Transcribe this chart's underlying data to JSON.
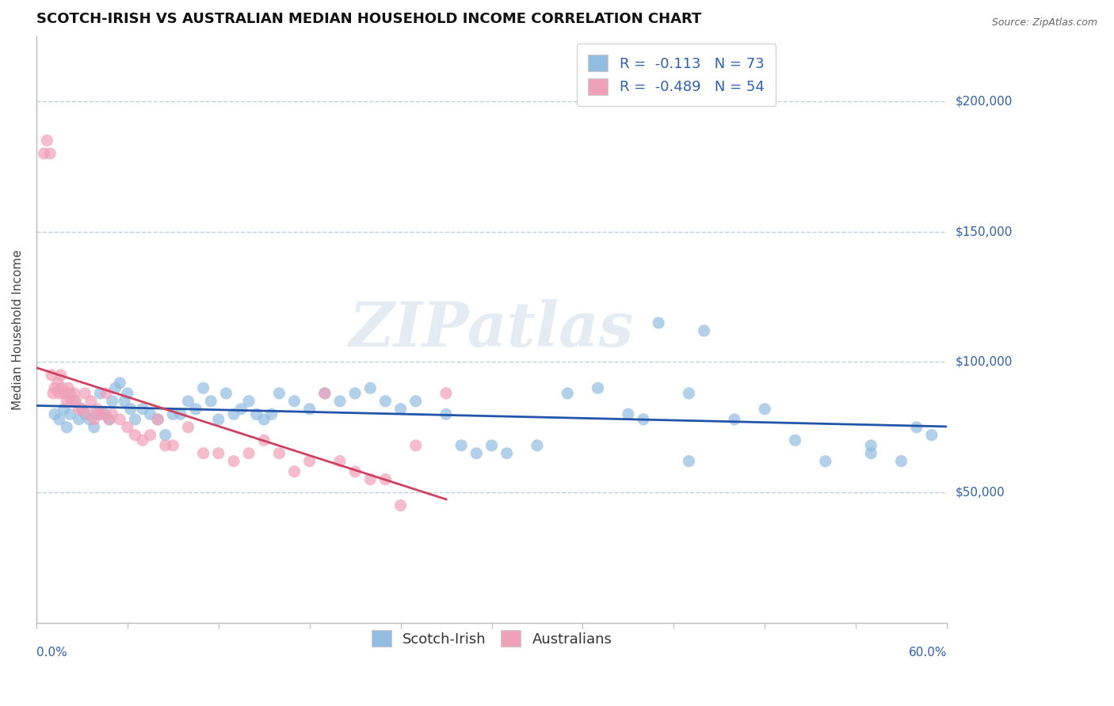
{
  "title": "SCOTCH-IRISH VS AUSTRALIAN MEDIAN HOUSEHOLD INCOME CORRELATION CHART",
  "source": "Source: ZipAtlas.com",
  "ylabel": "Median Household Income",
  "xlim": [
    0.0,
    60.0
  ],
  "ylim": [
    0,
    225000
  ],
  "yticks": [
    0,
    50000,
    100000,
    150000,
    200000
  ],
  "ytick_labels": [
    "",
    "$50,000",
    "$100,000",
    "$150,000",
    "$200,000"
  ],
  "scotch_irish_color": "#92bce0",
  "australian_color": "#f0a0b8",
  "regression_blue_color": "#2255aa",
  "regression_pink_color": "#d04060",
  "background_color": "#ffffff",
  "grid_color": "#c0d0e0",
  "watermark_text": "ZIPatlas",
  "scotch_irish_x": [
    1.2,
    1.5,
    1.8,
    2.0,
    2.2,
    2.5,
    2.8,
    3.0,
    3.2,
    3.5,
    3.8,
    4.0,
    4.2,
    4.5,
    4.8,
    5.0,
    5.2,
    5.5,
    5.8,
    6.0,
    6.2,
    6.5,
    7.0,
    7.5,
    8.0,
    8.5,
    9.0,
    9.5,
    10.0,
    10.5,
    11.0,
    11.5,
    12.0,
    12.5,
    13.0,
    13.5,
    14.0,
    14.5,
    15.0,
    15.5,
    16.0,
    17.0,
    18.0,
    19.0,
    20.0,
    21.0,
    22.0,
    23.0,
    24.0,
    25.0,
    27.0,
    28.0,
    29.0,
    30.0,
    31.0,
    33.0,
    35.0,
    37.0,
    39.0,
    40.0,
    41.0,
    43.0,
    44.0,
    46.0,
    48.0,
    50.0,
    52.0,
    55.0,
    57.0,
    58.0,
    59.0,
    43.0,
    55.0
  ],
  "scotch_irish_y": [
    80000,
    78000,
    82000,
    75000,
    80000,
    85000,
    78000,
    82000,
    80000,
    78000,
    75000,
    80000,
    88000,
    80000,
    78000,
    85000,
    90000,
    92000,
    85000,
    88000,
    82000,
    78000,
    82000,
    80000,
    78000,
    72000,
    80000,
    80000,
    85000,
    82000,
    90000,
    85000,
    78000,
    88000,
    80000,
    82000,
    85000,
    80000,
    78000,
    80000,
    88000,
    85000,
    82000,
    88000,
    85000,
    88000,
    90000,
    85000,
    82000,
    85000,
    80000,
    68000,
    65000,
    68000,
    65000,
    68000,
    88000,
    90000,
    80000,
    78000,
    115000,
    62000,
    112000,
    78000,
    82000,
    70000,
    62000,
    68000,
    62000,
    75000,
    72000,
    88000,
    65000
  ],
  "australian_x": [
    0.5,
    0.7,
    0.9,
    1.0,
    1.1,
    1.2,
    1.4,
    1.5,
    1.6,
    1.7,
    1.8,
    2.0,
    2.1,
    2.2,
    2.3,
    2.5,
    2.6,
    2.8,
    3.0,
    3.2,
    3.4,
    3.6,
    3.8,
    4.0,
    4.2,
    4.4,
    4.6,
    4.8,
    5.0,
    5.5,
    6.0,
    6.5,
    7.0,
    7.5,
    8.0,
    8.5,
    9.0,
    10.0,
    11.0,
    12.0,
    13.0,
    14.0,
    15.0,
    16.0,
    17.0,
    18.0,
    19.0,
    20.0,
    21.0,
    22.0,
    23.0,
    24.0,
    25.0,
    27.0
  ],
  "australian_y": [
    180000,
    185000,
    180000,
    95000,
    88000,
    90000,
    92000,
    88000,
    95000,
    90000,
    88000,
    85000,
    90000,
    88000,
    85000,
    88000,
    85000,
    82000,
    82000,
    88000,
    80000,
    85000,
    78000,
    82000,
    80000,
    80000,
    88000,
    78000,
    80000,
    78000,
    75000,
    72000,
    70000,
    72000,
    78000,
    68000,
    68000,
    75000,
    65000,
    65000,
    62000,
    65000,
    70000,
    65000,
    58000,
    62000,
    88000,
    62000,
    58000,
    55000,
    55000,
    45000,
    68000,
    88000
  ],
  "title_fontsize": 13,
  "axis_label_fontsize": 11,
  "tick_fontsize": 11,
  "legend_fontsize": 13
}
